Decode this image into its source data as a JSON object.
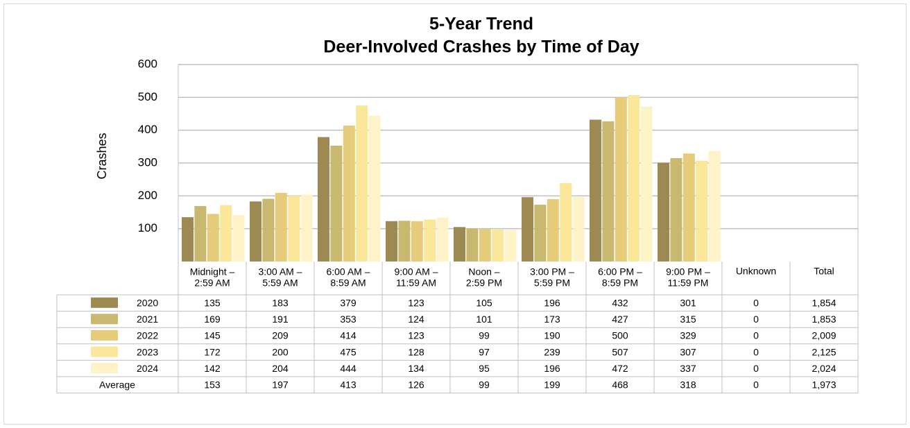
{
  "chart_data": {
    "type": "bar",
    "title": [
      "5-Year Trend",
      "Deer-Involved Crashes by Time of Day"
    ],
    "y_label": "Crashes",
    "categories": [
      [
        "Midnight –",
        "2:59 AM"
      ],
      [
        "3:00 AM –",
        "5:59 AM"
      ],
      [
        "6:00 AM –",
        "8:59 AM"
      ],
      [
        "9:00 AM –",
        "11:59 AM"
      ],
      [
        "Noon –",
        "2:59 PM"
      ],
      [
        "3:00 PM –",
        "5:59 PM"
      ],
      [
        "6:00 PM –",
        "8:59 PM"
      ],
      [
        "9:00 PM –",
        "11:59 PM"
      ],
      [
        "Unknown"
      ]
    ],
    "total_header": "Total",
    "series": [
      {
        "name": "2020",
        "color": "#9c8a52",
        "values": [
          135,
          183,
          379,
          123,
          105,
          196,
          432,
          301,
          0
        ],
        "total": 1854,
        "total_label": "1,854"
      },
      {
        "name": "2021",
        "color": "#c9b870",
        "values": [
          169,
          191,
          353,
          124,
          101,
          173,
          427,
          315,
          0
        ],
        "total": 1853,
        "total_label": "1,853"
      },
      {
        "name": "2022",
        "color": "#e6cc7a",
        "values": [
          145,
          209,
          414,
          123,
          99,
          190,
          500,
          329,
          0
        ],
        "total": 2009,
        "total_label": "2,009"
      },
      {
        "name": "2023",
        "color": "#fbe79a",
        "values": [
          172,
          200,
          475,
          128,
          97,
          239,
          507,
          307,
          0
        ],
        "total": 2125,
        "total_label": "2,125"
      },
      {
        "name": "2024",
        "color": "#fdf2c8",
        "values": [
          142,
          204,
          444,
          134,
          95,
          196,
          472,
          337,
          0
        ],
        "total": 2024,
        "total_label": "2,024"
      }
    ],
    "average": {
      "name": "Average",
      "values": [
        153,
        197,
        413,
        126,
        99,
        199,
        468,
        318,
        0
      ],
      "total": 1973,
      "total_label": "1,973"
    },
    "ylim": [
      0,
      600
    ],
    "yticks": [
      100,
      200,
      300,
      400,
      500,
      600
    ],
    "grid": true
  }
}
